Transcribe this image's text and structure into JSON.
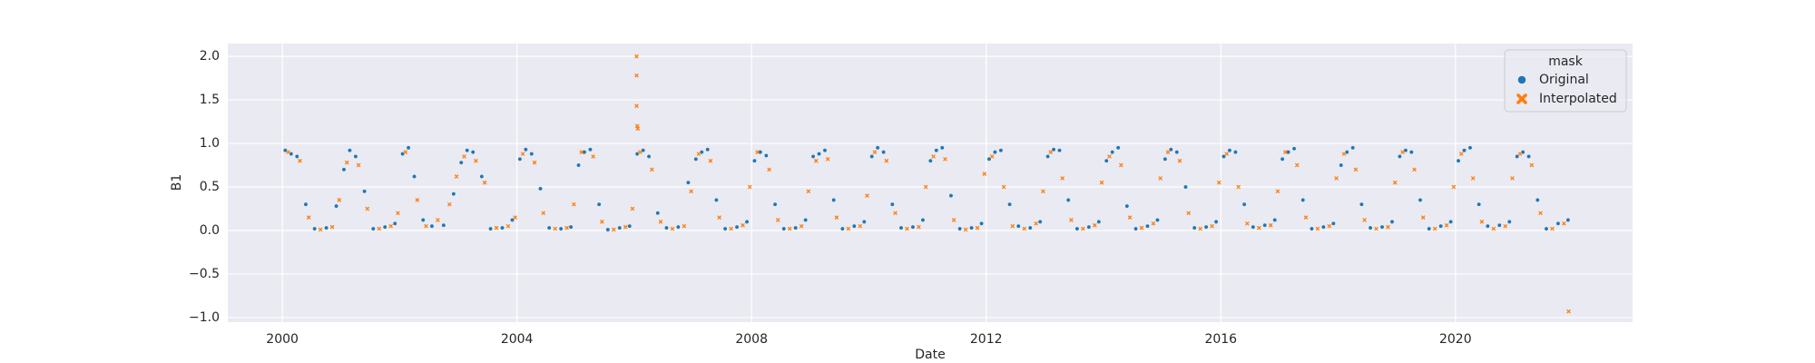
{
  "chart_data": {
    "type": "scatter",
    "x_label": "Date",
    "y_label": "B1",
    "xlim": [
      1999.07,
      2023.02
    ],
    "ylim": [
      -1.053,
      2.147
    ],
    "xticks": [
      2000,
      2004,
      2008,
      2012,
      2016,
      2020
    ],
    "yticks": [
      {
        "value": -1.0,
        "label": "−1.0"
      },
      {
        "value": -0.5,
        "label": "−0.5"
      },
      {
        "value": 0,
        "label": "0.0"
      },
      {
        "value": 0.5,
        "label": "0.5"
      },
      {
        "value": 1.0,
        "label": "1.0"
      },
      {
        "value": 1.5,
        "label": "1.5"
      },
      {
        "value": 2.0,
        "label": "2.0"
      }
    ],
    "grid": true,
    "legend_title": "mask",
    "legend_position": "upper right",
    "series": [
      {
        "name": "Original",
        "color": "#1f77b4",
        "marker": "circle",
        "x": [
          2000.05,
          2000.15,
          2000.25,
          2000.4,
          2000.55,
          2000.75,
          2000.92,
          2001.05,
          2001.15,
          2001.25,
          2001.4,
          2001.55,
          2001.75,
          2001.92,
          2002.05,
          2002.15,
          2002.25,
          2002.4,
          2002.55,
          2002.75,
          2002.92,
          2003.05,
          2003.15,
          2003.25,
          2003.4,
          2003.55,
          2003.75,
          2003.92,
          2004.05,
          2004.15,
          2004.25,
          2004.4,
          2004.55,
          2004.75,
          2004.92,
          2005.05,
          2005.15,
          2005.25,
          2005.4,
          2005.55,
          2005.75,
          2005.92,
          2006.05,
          2006.15,
          2006.25,
          2006.4,
          2006.55,
          2006.75,
          2006.92,
          2007.05,
          2007.15,
          2007.25,
          2007.4,
          2007.55,
          2007.75,
          2007.92,
          2008.05,
          2008.15,
          2008.25,
          2008.4,
          2008.55,
          2008.75,
          2008.92,
          2009.05,
          2009.15,
          2009.25,
          2009.4,
          2009.55,
          2009.75,
          2009.92,
          2010.05,
          2010.15,
          2010.25,
          2010.4,
          2010.55,
          2010.75,
          2010.92,
          2011.05,
          2011.15,
          2011.25,
          2011.4,
          2011.55,
          2011.75,
          2011.92,
          2012.05,
          2012.15,
          2012.25,
          2012.4,
          2012.55,
          2012.75,
          2012.92,
          2013.05,
          2013.15,
          2013.25,
          2013.4,
          2013.55,
          2013.75,
          2013.92,
          2014.05,
          2014.15,
          2014.25,
          2014.4,
          2014.55,
          2014.75,
          2014.92,
          2015.05,
          2015.15,
          2015.25,
          2015.4,
          2015.55,
          2015.75,
          2015.92,
          2016.05,
          2016.15,
          2016.25,
          2016.4,
          2016.55,
          2016.75,
          2016.92,
          2017.05,
          2017.15,
          2017.25,
          2017.4,
          2017.55,
          2017.75,
          2017.92,
          2018.05,
          2018.15,
          2018.25,
          2018.4,
          2018.55,
          2018.75,
          2018.92,
          2019.05,
          2019.15,
          2019.25,
          2019.4,
          2019.55,
          2019.75,
          2019.92,
          2020.05,
          2020.15,
          2020.25,
          2020.4,
          2020.55,
          2020.75,
          2020.92,
          2021.05,
          2021.15,
          2021.25,
          2021.4,
          2021.55,
          2021.75,
          2021.92
        ],
        "values": [
          0.92,
          0.88,
          0.85,
          0.3,
          0.02,
          0.03,
          0.28,
          0.7,
          0.92,
          0.85,
          0.45,
          0.02,
          0.04,
          0.08,
          0.88,
          0.95,
          0.62,
          0.12,
          0.05,
          0.06,
          0.42,
          0.78,
          0.92,
          0.9,
          0.62,
          0.02,
          0.03,
          0.12,
          0.82,
          0.93,
          0.88,
          0.48,
          0.03,
          0.02,
          0.04,
          0.75,
          0.9,
          0.93,
          0.3,
          0.01,
          0.03,
          0.05,
          0.88,
          0.92,
          0.85,
          0.2,
          0.03,
          0.04,
          0.55,
          0.82,
          0.9,
          0.93,
          0.35,
          0.02,
          0.04,
          0.1,
          0.8,
          0.9,
          0.86,
          0.3,
          0.02,
          0.03,
          0.12,
          0.85,
          0.88,
          0.92,
          0.35,
          0.02,
          0.05,
          0.1,
          0.85,
          0.95,
          0.9,
          0.3,
          0.03,
          0.04,
          0.12,
          0.8,
          0.92,
          0.95,
          0.4,
          0.02,
          0.03,
          0.08,
          0.82,
          0.9,
          0.92,
          0.3,
          0.05,
          0.03,
          0.1,
          0.85,
          0.93,
          0.92,
          0.35,
          0.02,
          0.04,
          0.1,
          0.8,
          0.9,
          0.95,
          0.28,
          0.02,
          0.05,
          0.12,
          0.82,
          0.93,
          0.9,
          0.5,
          0.03,
          0.04,
          0.1,
          0.85,
          0.92,
          0.9,
          0.3,
          0.04,
          0.06,
          0.12,
          0.82,
          0.9,
          0.94,
          0.35,
          0.02,
          0.04,
          0.08,
          0.75,
          0.9,
          0.95,
          0.3,
          0.03,
          0.04,
          0.1,
          0.85,
          0.92,
          0.9,
          0.35,
          0.02,
          0.05,
          0.1,
          0.8,
          0.92,
          0.95,
          0.3,
          0.05,
          0.06,
          0.1,
          0.85,
          0.9,
          0.85,
          0.35,
          0.02,
          0.08,
          0.12
        ]
      },
      {
        "name": "Interpolated",
        "color": "#ff7f0e",
        "marker": "x",
        "x": [
          2000.1,
          2000.3,
          2000.45,
          2000.65,
          2000.85,
          2000.97,
          2001.1,
          2001.3,
          2001.45,
          2001.65,
          2001.85,
          2001.97,
          2002.1,
          2002.3,
          2002.45,
          2002.65,
          2002.85,
          2002.97,
          2003.1,
          2003.3,
          2003.45,
          2003.65,
          2003.85,
          2003.97,
          2004.1,
          2004.3,
          2004.45,
          2004.65,
          2004.85,
          2004.97,
          2005.1,
          2005.3,
          2005.45,
          2005.65,
          2005.85,
          2005.97,
          2006.04,
          2006.04,
          2006.04,
          2006.05,
          2006.06,
          2006.1,
          2006.3,
          2006.45,
          2006.65,
          2006.85,
          2006.97,
          2007.1,
          2007.3,
          2007.45,
          2007.65,
          2007.85,
          2007.97,
          2008.1,
          2008.3,
          2008.45,
          2008.65,
          2008.85,
          2008.97,
          2009.1,
          2009.3,
          2009.45,
          2009.65,
          2009.85,
          2009.97,
          2010.1,
          2010.3,
          2010.45,
          2010.65,
          2010.85,
          2010.97,
          2011.1,
          2011.3,
          2011.45,
          2011.65,
          2011.85,
          2011.97,
          2012.1,
          2012.3,
          2012.45,
          2012.65,
          2012.85,
          2012.97,
          2013.1,
          2013.3,
          2013.45,
          2013.65,
          2013.85,
          2013.97,
          2014.1,
          2014.3,
          2014.45,
          2014.65,
          2014.85,
          2014.97,
          2015.1,
          2015.3,
          2015.45,
          2015.65,
          2015.85,
          2015.97,
          2016.1,
          2016.3,
          2016.45,
          2016.65,
          2016.85,
          2016.97,
          2017.1,
          2017.3,
          2017.45,
          2017.65,
          2017.85,
          2017.97,
          2018.1,
          2018.3,
          2018.45,
          2018.65,
          2018.85,
          2018.97,
          2019.1,
          2019.3,
          2019.45,
          2019.65,
          2019.85,
          2019.97,
          2020.1,
          2020.3,
          2020.45,
          2020.65,
          2020.85,
          2020.97,
          2021.1,
          2021.3,
          2021.45,
          2021.65,
          2021.85,
          2021.93
        ],
        "values": [
          0.9,
          0.8,
          0.15,
          0.01,
          0.04,
          0.35,
          0.78,
          0.75,
          0.25,
          0.02,
          0.05,
          0.2,
          0.9,
          0.35,
          0.05,
          0.12,
          0.3,
          0.62,
          0.85,
          0.8,
          0.55,
          0.03,
          0.05,
          0.15,
          0.88,
          0.78,
          0.2,
          0.02,
          0.03,
          0.3,
          0.9,
          0.85,
          0.1,
          0.01,
          0.04,
          0.25,
          2.0,
          1.78,
          1.43,
          1.2,
          1.17,
          0.9,
          0.7,
          0.1,
          0.02,
          0.05,
          0.45,
          0.88,
          0.8,
          0.15,
          0.02,
          0.06,
          0.5,
          0.9,
          0.7,
          0.12,
          0.02,
          0.05,
          0.45,
          0.8,
          0.82,
          0.15,
          0.02,
          0.05,
          0.4,
          0.9,
          0.8,
          0.2,
          0.02,
          0.04,
          0.5,
          0.85,
          0.82,
          0.12,
          0.01,
          0.03,
          0.65,
          0.85,
          0.5,
          0.05,
          0.02,
          0.08,
          0.45,
          0.9,
          0.6,
          0.12,
          0.02,
          0.06,
          0.55,
          0.85,
          0.75,
          0.15,
          0.03,
          0.08,
          0.6,
          0.9,
          0.8,
          0.2,
          0.02,
          0.05,
          0.55,
          0.88,
          0.5,
          0.08,
          0.03,
          0.06,
          0.45,
          0.9,
          0.75,
          0.15,
          0.02,
          0.05,
          0.6,
          0.88,
          0.7,
          0.12,
          0.02,
          0.04,
          0.55,
          0.9,
          0.7,
          0.15,
          0.02,
          0.06,
          0.5,
          0.88,
          0.6,
          0.1,
          0.02,
          0.05,
          0.6,
          0.88,
          0.75,
          0.2,
          0.02,
          0.08,
          -0.93
        ]
      }
    ]
  }
}
